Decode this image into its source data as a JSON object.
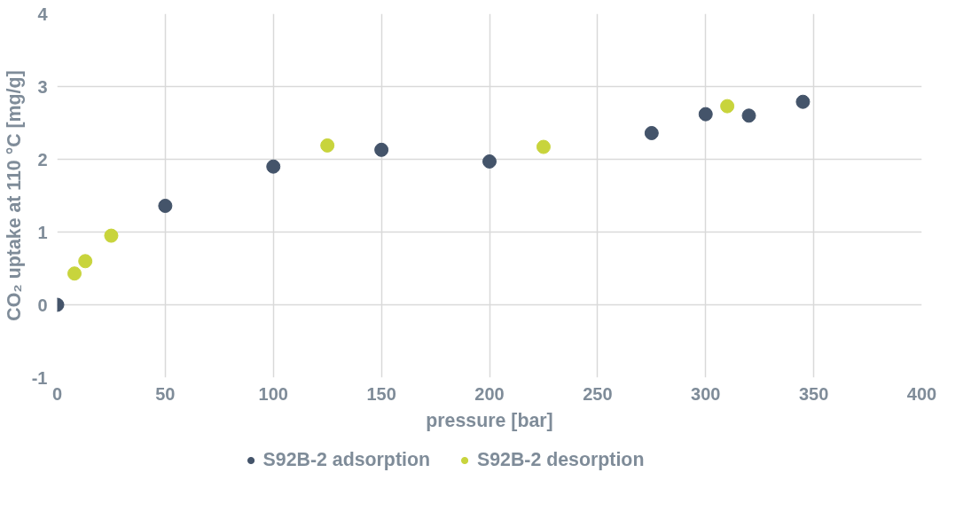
{
  "chart_data": {
    "type": "scatter",
    "xlabel": "pressure [bar]",
    "ylabel": "CO₂ uptake at 110 °C [mg/g]",
    "xlim": [
      0,
      400
    ],
    "xticks": [
      0,
      50,
      100,
      150,
      200,
      250,
      300,
      350,
      400
    ],
    "ylim": [
      -1,
      4
    ],
    "yticks": [
      -1,
      0,
      1,
      2,
      3,
      4
    ],
    "grid": true,
    "legend": "bottom",
    "marker": "circle",
    "series": [
      {
        "name": "S92B-2 adsorption",
        "color": "#44546a",
        "x": [
          0,
          50,
          100,
          150,
          200,
          275,
          300,
          320,
          345
        ],
        "values": [
          0,
          1.36,
          1.9,
          2.13,
          1.97,
          2.36,
          2.62,
          2.6,
          2.79
        ]
      },
      {
        "name": "S92B-2 desorption",
        "color": "#c8d43c",
        "x": [
          8,
          13,
          25,
          125,
          225,
          310
        ],
        "values": [
          0.43,
          0.6,
          0.95,
          2.19,
          2.17,
          2.73
        ]
      }
    ]
  }
}
